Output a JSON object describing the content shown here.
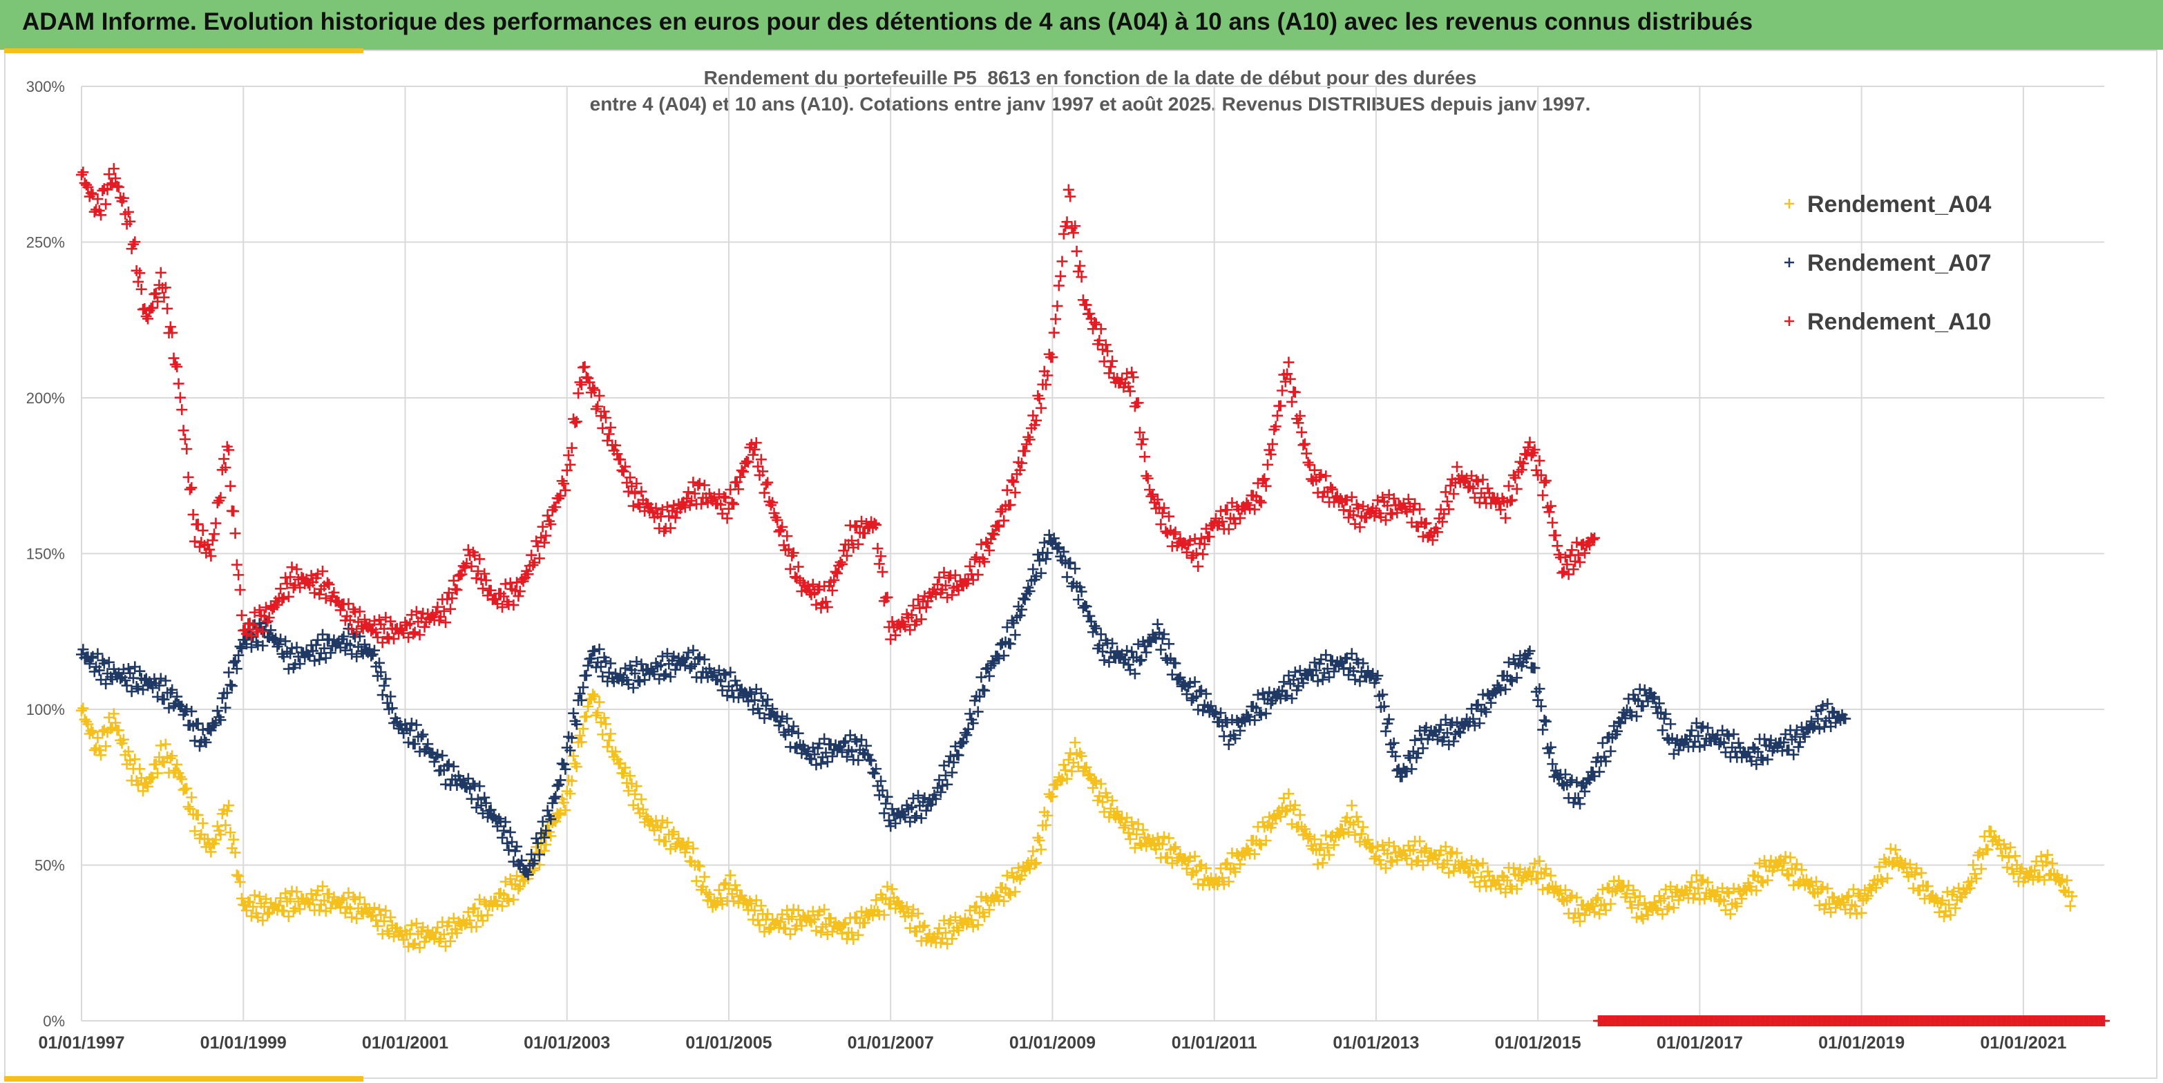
{
  "header": {
    "banner_text": "ADAM Informe. Evolution historique des performances en euros pour des détentions de 4 ans (A04) à 10 ans (A10) avec les revenus connus distribués"
  },
  "colors": {
    "banner": "#7cc576",
    "accent": "#f5c01c",
    "A04": "#f5c01c",
    "A07": "#1f3864",
    "A10": "#e31b23",
    "grid": "#d9d9d9"
  },
  "chart_data": {
    "type": "scatter",
    "title_line1": "Rendement du portefeuille P5_8613 en fonction de la date de début pour des durées",
    "title_line2": "entre 4 (A04) et 10 ans (A10). Cotations entre janv 1997 et août 2025. Revenus DISTRIBUES depuis janv 1997.",
    "xlabel": "",
    "ylabel": "",
    "grid": true,
    "legend_position": "top-right",
    "marker": "+",
    "x_range": [
      "1997-01-01",
      "2022-01-01"
    ],
    "y_range": [
      0,
      3.0
    ],
    "y_ticks": [
      "0%",
      "50%",
      "100%",
      "150%",
      "200%",
      "250%",
      "300%"
    ],
    "x_ticks": [
      "01/01/1997",
      "01/01/1999",
      "01/01/2001",
      "01/01/2003",
      "01/01/2005",
      "01/01/2007",
      "01/01/2009",
      "01/01/2011",
      "01/01/2013",
      "01/01/2015",
      "01/01/2017",
      "01/01/2019",
      "01/01/2021"
    ],
    "series": [
      {
        "name": "Rendement_A04",
        "color": "#f5c01c",
        "x": [
          1997.0,
          1997.2,
          1997.4,
          1997.6,
          1997.8,
          1998.0,
          1998.2,
          1998.4,
          1998.6,
          1998.8,
          1999.0,
          1999.3,
          1999.6,
          2000.0,
          2000.5,
          2001.0,
          2001.5,
          2002.0,
          2002.5,
          2003.0,
          2003.3,
          2003.6,
          2004.0,
          2004.5,
          2004.8,
          2005.0,
          2005.5,
          2006.0,
          2006.5,
          2007.0,
          2007.5,
          2008.0,
          2008.5,
          2008.8,
          2009.0,
          2009.3,
          2009.6,
          2010.0,
          2010.5,
          2011.0,
          2011.5,
          2011.9,
          2012.3,
          2012.7,
          2013.0,
          2013.5,
          2014.0,
          2014.5,
          2015.0,
          2015.5,
          2015.8,
          2016.0,
          2016.3,
          2016.7,
          2017.0,
          2017.4,
          2017.8,
          2018.0,
          2018.3,
          2018.6,
          2019.0,
          2019.4,
          2019.8,
          2020.0,
          2020.3,
          2020.6,
          2021.0,
          2021.3,
          2021.6
        ],
        "y": [
          1.0,
          0.87,
          0.97,
          0.82,
          0.75,
          0.86,
          0.8,
          0.65,
          0.55,
          0.68,
          0.37,
          0.36,
          0.38,
          0.39,
          0.36,
          0.27,
          0.28,
          0.36,
          0.46,
          0.72,
          1.05,
          0.85,
          0.64,
          0.55,
          0.37,
          0.43,
          0.31,
          0.33,
          0.29,
          0.4,
          0.26,
          0.33,
          0.44,
          0.53,
          0.74,
          0.86,
          0.72,
          0.6,
          0.54,
          0.44,
          0.57,
          0.7,
          0.53,
          0.65,
          0.53,
          0.54,
          0.51,
          0.44,
          0.48,
          0.35,
          0.38,
          0.44,
          0.35,
          0.4,
          0.43,
          0.38,
          0.48,
          0.51,
          0.45,
          0.38,
          0.38,
          0.53,
          0.42,
          0.36,
          0.42,
          0.6,
          0.46,
          0.5,
          0.4
        ]
      },
      {
        "name": "Rendement_A07",
        "color": "#1f3864",
        "x": [
          1997.0,
          1997.3,
          1997.6,
          1997.9,
          1998.2,
          1998.5,
          1998.7,
          1999.0,
          1999.3,
          1999.6,
          2000.0,
          2000.3,
          2000.6,
          2000.9,
          2001.2,
          2001.5,
          2001.8,
          2002.2,
          2002.5,
          2002.8,
          2003.0,
          2003.3,
          2003.6,
          2004.0,
          2004.5,
          2005.0,
          2005.5,
          2006.0,
          2006.4,
          2006.7,
          2007.0,
          2007.5,
          2007.9,
          2008.2,
          2008.5,
          2008.8,
          2009.0,
          2009.3,
          2009.6,
          2010.0,
          2010.3,
          2010.6,
          2010.9,
          2011.2,
          2011.5,
          2011.8,
          2012.2,
          2012.6,
          2013.0,
          2013.3,
          2013.6,
          2014.0,
          2014.3,
          2014.6,
          2014.9,
          2015.2,
          2015.5,
          2015.8,
          2016.1,
          2016.4,
          2016.7,
          2017.0,
          2017.3,
          2017.6,
          2017.9,
          2018.2,
          2018.5,
          2018.8
        ],
        "y": [
          1.18,
          1.12,
          1.1,
          1.08,
          1.02,
          0.9,
          0.98,
          1.22,
          1.25,
          1.16,
          1.2,
          1.22,
          1.18,
          0.95,
          0.9,
          0.8,
          0.75,
          0.62,
          0.47,
          0.67,
          0.86,
          1.18,
          1.1,
          1.12,
          1.16,
          1.08,
          1.0,
          0.85,
          0.88,
          0.87,
          0.65,
          0.7,
          0.9,
          1.12,
          1.25,
          1.45,
          1.55,
          1.4,
          1.2,
          1.15,
          1.25,
          1.08,
          1.02,
          0.92,
          1.0,
          1.05,
          1.12,
          1.15,
          1.1,
          0.78,
          0.92,
          0.93,
          1.0,
          1.1,
          1.18,
          0.8,
          0.72,
          0.85,
          1.0,
          1.05,
          0.88,
          0.92,
          0.9,
          0.85,
          0.88,
          0.9,
          0.98,
          0.97
        ]
      },
      {
        "name": "Rendement_A10",
        "color": "#e31b23",
        "x": [
          1997.0,
          1997.2,
          1997.4,
          1997.6,
          1997.8,
          1998.0,
          1998.2,
          1998.4,
          1998.6,
          1998.8,
          1999.0,
          1999.3,
          1999.6,
          2000.0,
          2000.3,
          2000.6,
          2000.9,
          2001.2,
          2001.5,
          2001.8,
          2002.1,
          2002.4,
          2002.7,
          2003.0,
          2003.2,
          2003.5,
          2003.8,
          2004.2,
          2004.6,
          2005.0,
          2005.3,
          2005.6,
          2005.9,
          2006.2,
          2006.5,
          2006.8,
          2007.0,
          2007.3,
          2007.6,
          2007.9,
          2008.2,
          2008.5,
          2008.8,
          2009.0,
          2009.2,
          2009.4,
          2009.6,
          2009.8,
          2010.0,
          2010.2,
          2010.5,
          2010.8,
          2011.0,
          2011.3,
          2011.6,
          2011.9,
          2012.2,
          2012.5,
          2012.8,
          2013.1,
          2013.4,
          2013.7,
          2014.0,
          2014.3,
          2014.6,
          2014.9,
          2015.1,
          2015.3,
          2015.5,
          2015.7
        ],
        "y": [
          2.72,
          2.6,
          2.72,
          2.55,
          2.25,
          2.38,
          2.05,
          1.58,
          1.5,
          1.85,
          1.25,
          1.3,
          1.42,
          1.4,
          1.3,
          1.26,
          1.25,
          1.28,
          1.32,
          1.5,
          1.35,
          1.38,
          1.55,
          1.75,
          2.1,
          1.9,
          1.7,
          1.6,
          1.7,
          1.65,
          1.85,
          1.6,
          1.4,
          1.35,
          1.55,
          1.6,
          1.25,
          1.3,
          1.4,
          1.4,
          1.52,
          1.7,
          1.95,
          2.15,
          2.65,
          2.3,
          2.18,
          2.05,
          2.05,
          1.7,
          1.55,
          1.5,
          1.6,
          1.63,
          1.7,
          2.1,
          1.75,
          1.68,
          1.62,
          1.65,
          1.65,
          1.55,
          1.75,
          1.7,
          1.65,
          1.85,
          1.7,
          1.45,
          1.5,
          1.55
        ]
      },
      {
        "name": "Rendement_A10",
        "color": "#e31b23",
        "x": [
          2015.75,
          2016.5,
          2017.5,
          2018.5,
          2019.5,
          2020.5,
          2021.5,
          2022.0
        ],
        "y": [
          0,
          0,
          0,
          0,
          0,
          0,
          0,
          0
        ]
      }
    ],
    "legend": [
      "Rendement_A04",
      "Rendement_A07",
      "Rendement_A10"
    ]
  }
}
